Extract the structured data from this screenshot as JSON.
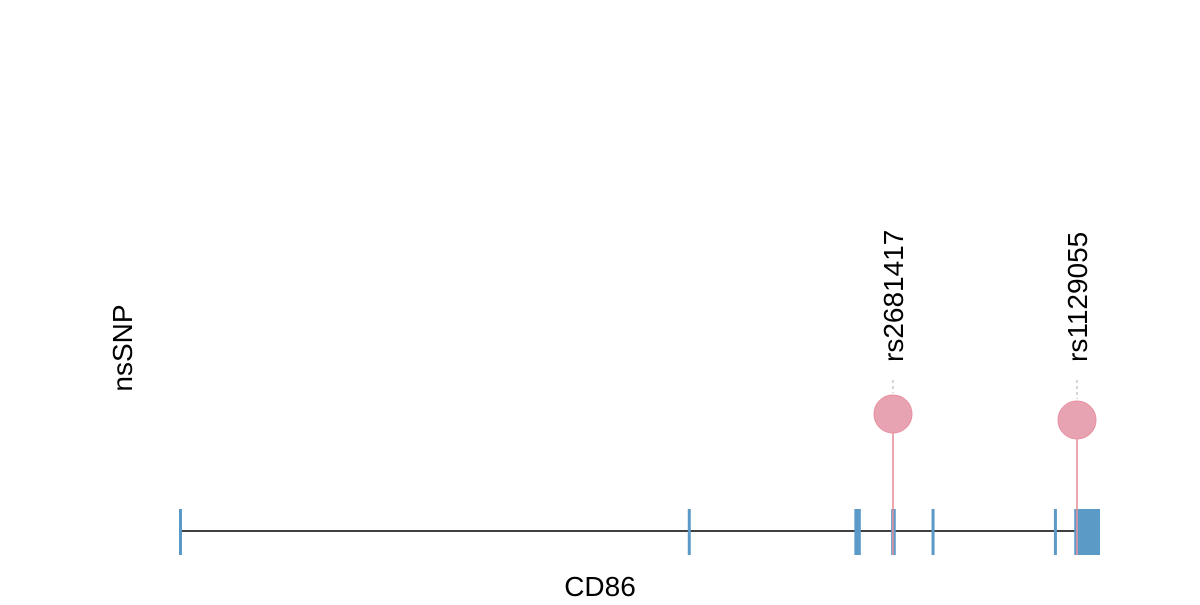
{
  "track_label": "nsSNP",
  "gene_name": "CD86",
  "gene_model": {
    "intron_color": "#000000",
    "exon_color": "#5b9ac6",
    "exons": [
      {
        "start": 0.0,
        "end": 0.2
      },
      {
        "start": 55.3,
        "end": 55.5
      },
      {
        "start": 73.3,
        "end": 74.0
      },
      {
        "start": 77.3,
        "end": 77.8
      },
      {
        "start": 81.8,
        "end": 82.1
      },
      {
        "start": 95.1,
        "end": 95.3
      },
      {
        "start": 97.2,
        "end": 100.0
      }
    ]
  },
  "snps": [
    {
      "id": "rs2681417",
      "position": 77.5,
      "color": "#e8a3b2",
      "stem_color": "#e8909f"
    },
    {
      "id": "rs1129055",
      "position": 97.5,
      "color": "#e8a3b2",
      "stem_color": "#e8909f"
    }
  ]
}
